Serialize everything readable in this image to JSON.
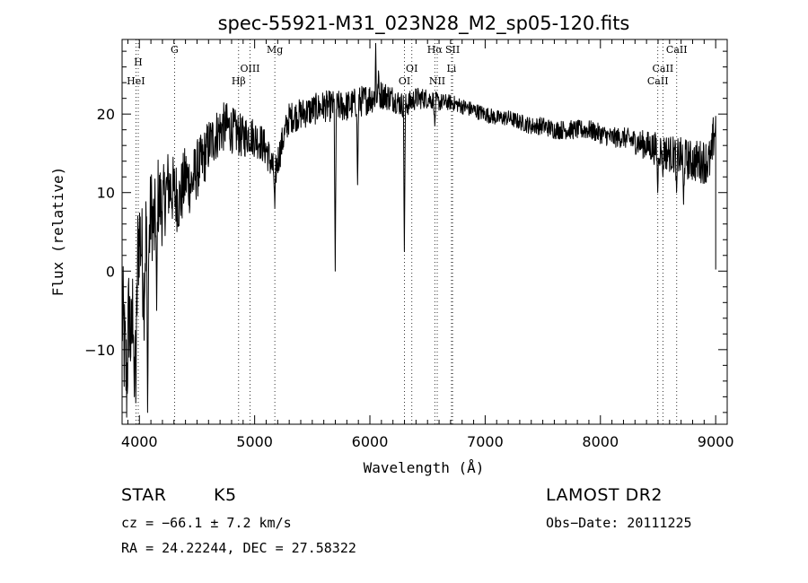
{
  "chart_data": {
    "type": "line",
    "title": "spec-55921-M31_023N28_M2_sp05-120.fits",
    "xlabel": "Wavelength (Å)",
    "ylabel": "Flux (relative)",
    "xlim": [
      3850,
      9100
    ],
    "ylim": [
      -19.5,
      29.5
    ],
    "xticks": [
      4000,
      5000,
      6000,
      7000,
      8000,
      9000
    ],
    "yticks": [
      -10,
      0,
      10,
      20
    ],
    "line_color": "#000000",
    "lines": [
      {
        "label": "HeI",
        "x": 3970,
        "row": 1
      },
      {
        "label": "H",
        "x": 3990,
        "row": 4
      },
      {
        "label": "G",
        "x": 4305,
        "row": 6
      },
      {
        "label": "Hβ",
        "x": 4861,
        "row": 1
      },
      {
        "label": "OIII",
        "x": 4960,
        "row": 3
      },
      {
        "label": "Mg",
        "x": 5175,
        "row": 6
      },
      {
        "label": "OI",
        "x": 6300,
        "row": 1
      },
      {
        "label": "OI",
        "x": 6364,
        "row": 3
      },
      {
        "label": "NII",
        "x": 6584,
        "row": 1
      },
      {
        "label": "Hα",
        "x": 6563,
        "row": 6
      },
      {
        "label": "SII",
        "x": 6717,
        "row": 6
      },
      {
        "label": "Li",
        "x": 6708,
        "row": 3
      },
      {
        "label": "CaII",
        "x": 8498,
        "row": 1
      },
      {
        "label": "CaII",
        "x": 8542,
        "row": 3
      },
      {
        "label": "CaII",
        "x": 8662,
        "row": 6
      }
    ],
    "anchors": [
      [
        3850,
        -5
      ],
      [
        3870,
        -10
      ],
      [
        3890,
        -14
      ],
      [
        3910,
        -5
      ],
      [
        3930,
        -10
      ],
      [
        3950,
        -2
      ],
      [
        3970,
        -14
      ],
      [
        3985,
        2
      ],
      [
        4000,
        5
      ],
      [
        4020,
        3
      ],
      [
        4040,
        -3
      ],
      [
        4060,
        7
      ],
      [
        4080,
        2
      ],
      [
        4100,
        8
      ],
      [
        4130,
        5
      ],
      [
        4150,
        10
      ],
      [
        4200,
        8
      ],
      [
        4250,
        11
      ],
      [
        4300,
        10
      ],
      [
        4350,
        9
      ],
      [
        4400,
        12
      ],
      [
        4450,
        11
      ],
      [
        4500,
        13
      ],
      [
        4550,
        14
      ],
      [
        4600,
        16
      ],
      [
        4650,
        17
      ],
      [
        4700,
        18
      ],
      [
        4750,
        18.5
      ],
      [
        4800,
        18
      ],
      [
        4850,
        17.5
      ],
      [
        4900,
        17
      ],
      [
        4950,
        17.5
      ],
      [
        5000,
        17
      ],
      [
        5050,
        16.5
      ],
      [
        5100,
        15.5
      ],
      [
        5150,
        13.5
      ],
      [
        5175,
        12
      ],
      [
        5200,
        14
      ],
      [
        5250,
        17
      ],
      [
        5300,
        19.5
      ],
      [
        5400,
        20
      ],
      [
        5500,
        20.5
      ],
      [
        5600,
        21
      ],
      [
        5700,
        21
      ],
      [
        5800,
        21
      ],
      [
        5900,
        21.5
      ],
      [
        6000,
        22
      ],
      [
        6100,
        22.5
      ],
      [
        6200,
        22
      ],
      [
        6300,
        21
      ],
      [
        6400,
        22
      ],
      [
        6500,
        22
      ],
      [
        6600,
        21.5
      ],
      [
        6700,
        21.5
      ],
      [
        6800,
        21
      ],
      [
        6900,
        20.5
      ],
      [
        7000,
        20
      ],
      [
        7100,
        19.5
      ],
      [
        7200,
        19.5
      ],
      [
        7300,
        19
      ],
      [
        7400,
        18.5
      ],
      [
        7500,
        18.5
      ],
      [
        7600,
        18
      ],
      [
        7700,
        18
      ],
      [
        7800,
        18
      ],
      [
        7900,
        18
      ],
      [
        8000,
        17.5
      ],
      [
        8100,
        17
      ],
      [
        8200,
        17
      ],
      [
        8300,
        16.5
      ],
      [
        8400,
        16
      ],
      [
        8500,
        15.5
      ],
      [
        8600,
        15
      ],
      [
        8700,
        14.5
      ],
      [
        8800,
        14
      ],
      [
        8900,
        14
      ],
      [
        8960,
        14
      ],
      [
        8980,
        17
      ],
      [
        9000,
        18.5
      ]
    ],
    "dips": [
      [
        4070,
        -18
      ],
      [
        3955,
        -16
      ],
      [
        4150,
        -5
      ],
      [
        5175,
        8
      ],
      [
        5700,
        0
      ],
      [
        5892,
        11
      ],
      [
        6299,
        2.5
      ],
      [
        6563,
        18.5
      ],
      [
        8498,
        10
      ],
      [
        8542,
        12
      ],
      [
        8662,
        10
      ],
      [
        8720,
        8.5
      ]
    ],
    "spikes": [
      [
        6050,
        29
      ],
      [
        6075,
        25.5
      ]
    ],
    "noise": [
      [
        3850,
        8
      ],
      [
        4200,
        5
      ],
      [
        4600,
        3.5
      ],
      [
        5000,
        2.5
      ],
      [
        5300,
        2
      ],
      [
        6000,
        2
      ],
      [
        6700,
        1
      ],
      [
        7200,
        1
      ],
      [
        7600,
        1.2
      ],
      [
        8200,
        1.3
      ],
      [
        8500,
        2.2
      ],
      [
        9000,
        3
      ]
    ],
    "n_points": 1700
  },
  "info": {
    "object_class": "STAR",
    "subclass": "K5",
    "cz": "cz = −66.1 ± 7.2 km/s",
    "coords": "RA =  24.22244, DEC =  27.58322",
    "survey": "LAMOST DR2",
    "obs_date": "Obs−Date: 20111225"
  }
}
